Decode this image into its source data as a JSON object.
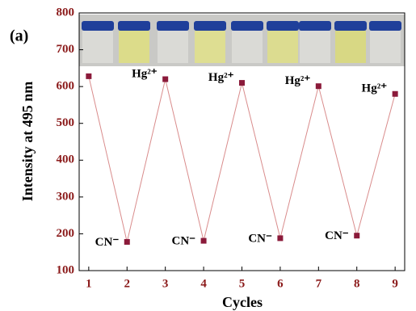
{
  "chart_data": {
    "type": "line",
    "panel_label": "(a)",
    "x_label": "Cycles",
    "y_label": "Intensity at 495 nm",
    "x": [
      1,
      2,
      3,
      4,
      5,
      6,
      7,
      8,
      9
    ],
    "series": [
      {
        "color": "#8b1a3a",
        "line_color": "#d98c8c",
        "values": [
          628,
          178,
          620,
          181,
          610,
          188,
          601,
          195,
          580
        ]
      }
    ],
    "point_labels": [
      null,
      "CN⁻",
      "Hg²⁺",
      "CN⁻",
      "Hg²⁺",
      "CN⁻",
      "Hg²⁺",
      "CN⁻",
      "Hg²⁺"
    ],
    "xlim": [
      0.75,
      9.25
    ],
    "xticks": [
      1,
      2,
      3,
      4,
      5,
      6,
      7,
      8,
      9
    ],
    "ylim": [
      100,
      800
    ],
    "yticks": [
      100,
      200,
      300,
      400,
      500,
      600,
      700,
      800
    ],
    "tick_color": "#8b1a1a"
  }
}
